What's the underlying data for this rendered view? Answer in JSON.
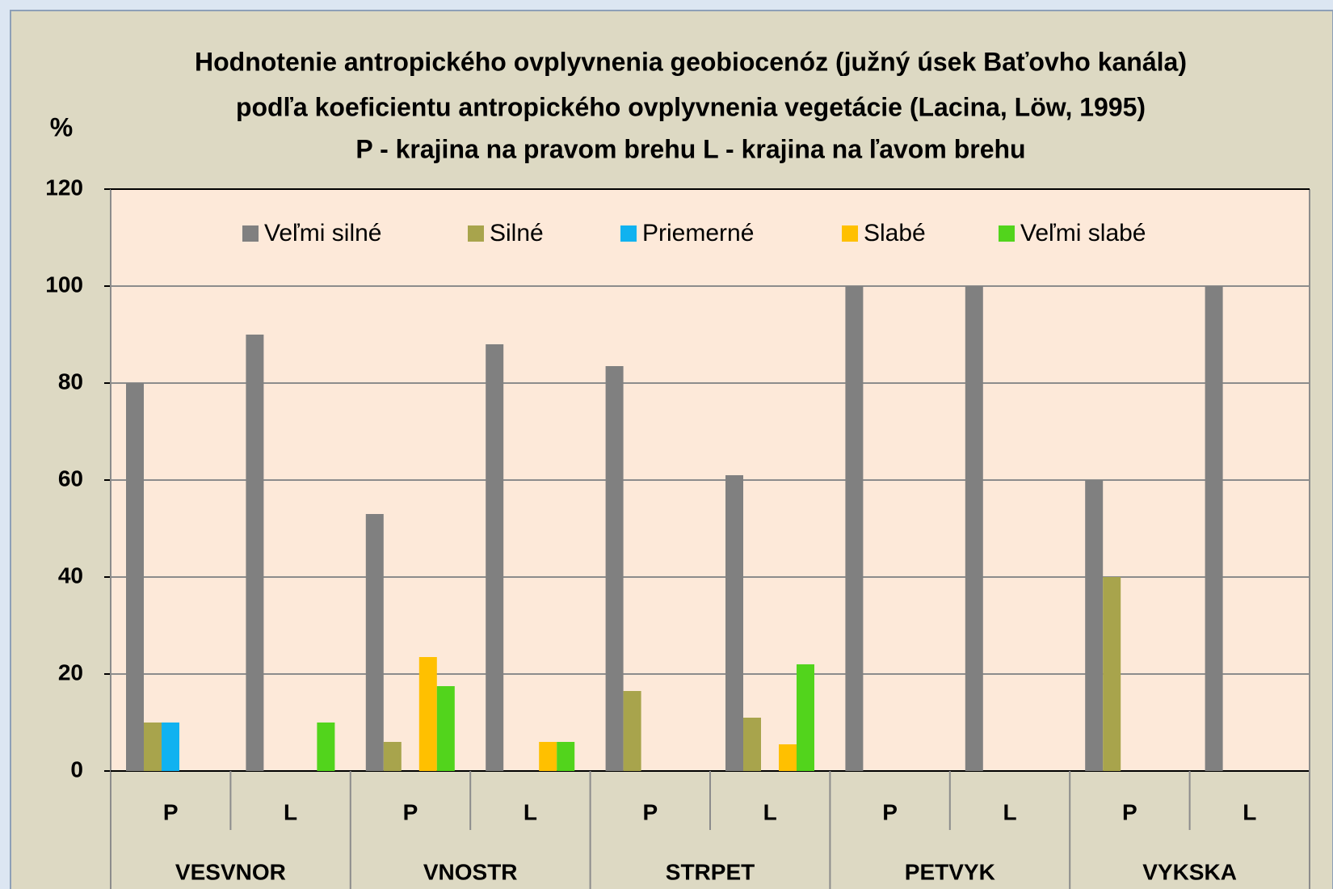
{
  "chart_data": {
    "type": "bar",
    "title": [
      "Hodnotenie antropického ovplyvnenia geobiocenóz (južný úsek Baťovho kanála)",
      "podľa koeficientu antropického ovplyvnenia vegetácie (Lacina, Löw, 1995)",
      "P - krajina na pravom brehu  L - krajina na ľavom brehu"
    ],
    "ylabel": "%",
    "categories": [
      "P",
      "L",
      "P",
      "L",
      "P",
      "L",
      "P",
      "L",
      "P",
      "L"
    ],
    "groups": [
      "VESVNOR",
      "VNOSTR",
      "STRPET",
      "PETVYK",
      "VYKSKA"
    ],
    "series": [
      {
        "name": "Veľmi silné",
        "color": "#808080",
        "values": [
          80,
          90,
          53,
          88,
          83.5,
          61,
          100,
          100,
          60,
          100
        ]
      },
      {
        "name": "Silné",
        "color": "#a8a44c",
        "values": [
          10,
          0,
          6,
          0,
          16.5,
          11,
          0,
          0,
          40,
          0
        ]
      },
      {
        "name": "Priemerné",
        "color": "#10b2f0",
        "values": [
          10,
          0,
          0,
          0,
          0,
          0,
          0,
          0,
          0,
          0
        ]
      },
      {
        "name": "Slabé",
        "color": "#ffc000",
        "values": [
          0,
          0,
          23.5,
          6,
          0,
          5.5,
          0,
          0,
          0,
          0
        ]
      },
      {
        "name": "Veľmi slabé",
        "color": "#52d41c",
        "values": [
          0,
          10,
          17.5,
          6,
          0,
          22,
          0,
          0,
          0,
          0
        ]
      }
    ],
    "ylim": [
      0,
      120
    ],
    "yticks": [
      0,
      20,
      40,
      60,
      80,
      100,
      120
    ],
    "grid": true,
    "legend": "top"
  }
}
